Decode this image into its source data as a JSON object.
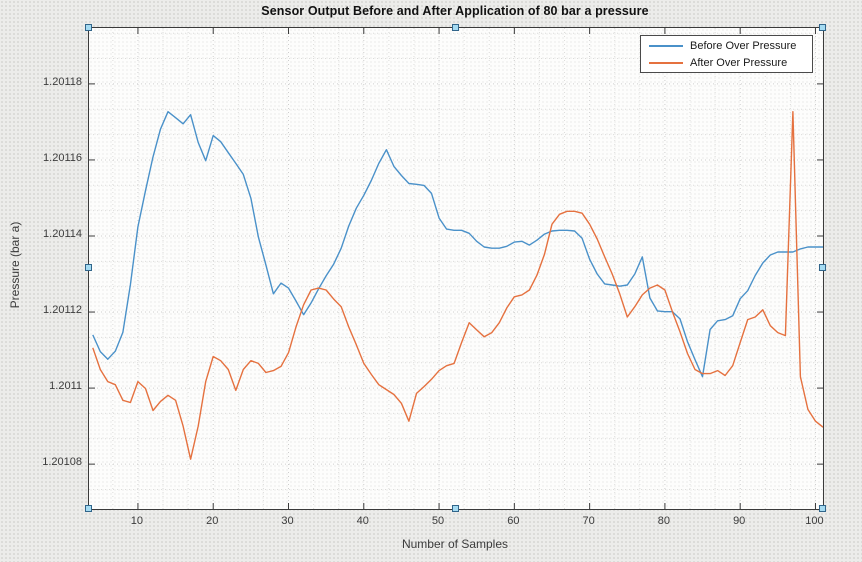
{
  "figure": {
    "type": "matlab-figure-plot",
    "background_color": "#ececea",
    "plot_background_color": "#fdfdfc",
    "axes_edit_mode_selected": true,
    "selection_handle_color": "#a5dbf2"
  },
  "chart_data": {
    "type": "line",
    "title": "Sensor Output Before and After Application of 80 bar a pressure",
    "xlabel": "Number of Samples",
    "ylabel": "Pressure (bar a)",
    "xlim": [
      3.5,
      101
    ],
    "ylim": [
      1.2010682,
      1.2011947
    ],
    "x_ticks": [
      10,
      20,
      30,
      40,
      50,
      60,
      70,
      80,
      90,
      100
    ],
    "x_tick_labels": [
      "10",
      "20",
      "30",
      "40",
      "50",
      "60",
      "70",
      "80",
      "90",
      "100"
    ],
    "y_ticks": [
      1.20108,
      1.2011,
      1.20112,
      1.20114,
      1.20116,
      1.20118
    ],
    "y_tick_labels": [
      "1.20108",
      "1.2011",
      "1.20112",
      "1.20114",
      "1.20116",
      "1.20118"
    ],
    "grid": {
      "major": true,
      "minor": true,
      "style": "dotted",
      "minor_divisions": 3,
      "color": "#d6d6d4"
    },
    "box": true,
    "legend": {
      "position": "northeast",
      "background": "#ffffff",
      "border": "#4a4a4a"
    },
    "x": [
      4,
      5,
      6,
      7,
      8,
      9,
      10,
      11,
      12,
      13,
      14,
      15,
      16,
      17,
      18,
      19,
      20,
      21,
      22,
      23,
      24,
      25,
      26,
      27,
      28,
      29,
      30,
      31,
      32,
      33,
      34,
      35,
      36,
      37,
      38,
      39,
      40,
      41,
      42,
      43,
      44,
      45,
      46,
      47,
      48,
      49,
      50,
      51,
      52,
      53,
      54,
      55,
      56,
      57,
      58,
      59,
      60,
      61,
      62,
      63,
      64,
      65,
      66,
      67,
      68,
      69,
      70,
      71,
      72,
      73,
      74,
      75,
      76,
      77,
      78,
      79,
      80,
      81,
      82,
      83,
      84,
      85,
      86,
      87,
      88,
      89,
      90,
      91,
      92,
      93,
      94,
      95,
      96,
      97,
      98,
      99,
      100,
      101
    ],
    "series": [
      {
        "name": "Before Over Pressure",
        "color": "#4a91c9",
        "values": [
          1.201114,
          1.2011096,
          1.2011076,
          1.2011097,
          1.2011147,
          1.2011272,
          1.2011424,
          1.2011519,
          1.2011608,
          1.2011681,
          1.2011727,
          1.2011711,
          1.2011695,
          1.2011719,
          1.2011646,
          1.2011598,
          1.2011664,
          1.2011648,
          1.2011619,
          1.2011591,
          1.2011562,
          1.2011499,
          1.2011397,
          1.2011324,
          1.2011248,
          1.2011276,
          1.2011263,
          1.2011229,
          1.2011193,
          1.2011224,
          1.2011261,
          1.2011295,
          1.2011326,
          1.2011368,
          1.2011426,
          1.2011473,
          1.2011507,
          1.2011546,
          1.2011591,
          1.2011627,
          1.2011583,
          1.2011559,
          1.2011538,
          1.2011536,
          1.2011533,
          1.2011512,
          1.2011447,
          1.2011418,
          1.2011415,
          1.2011415,
          1.2011407,
          1.2011386,
          1.2011371,
          1.2011368,
          1.2011368,
          1.2011373,
          1.2011384,
          1.2011386,
          1.2011376,
          1.2011389,
          1.2011405,
          1.2011413,
          1.2011415,
          1.2011415,
          1.2011413,
          1.2011394,
          1.2011339,
          1.20113,
          1.2011274,
          1.2011271,
          1.2011268,
          1.2011271,
          1.20113,
          1.2011345,
          1.2011237,
          1.2011203,
          1.2011201,
          1.2011201,
          1.2011182,
          1.2011122,
          1.2011075,
          1.201103,
          1.2011154,
          1.2011177,
          1.201118,
          1.201119,
          1.2011235,
          1.2011256,
          1.2011296,
          1.2011329,
          1.201135,
          1.2011358,
          1.2011358,
          1.2011358,
          1.2011366,
          1.2011371,
          1.2011371,
          1.2011371
        ]
      },
      {
        "name": "After Over Pressure",
        "color": "#e5713f",
        "values": [
          1.2011106,
          1.2011049,
          1.2011017,
          1.2011009,
          1.2010968,
          1.2010962,
          1.2011017,
          1.2010999,
          1.2010941,
          1.2010965,
          1.2010981,
          1.2010968,
          1.20109,
          1.2010813,
          1.20109,
          1.2011017,
          1.2011083,
          1.2011072,
          1.2011049,
          1.2010994,
          1.2011049,
          1.2011072,
          1.2011065,
          1.2011041,
          1.2011046,
          1.2011057,
          1.2011093,
          1.2011161,
          1.2011219,
          1.2011258,
          1.2011263,
          1.2011258,
          1.2011234,
          1.2011214,
          1.2011161,
          1.2011114,
          1.2011065,
          1.2011036,
          1.2011009,
          1.2010996,
          1.2010983,
          1.201096,
          1.2010913,
          1.2010986,
          1.2011004,
          1.2011023,
          1.2011046,
          1.2011059,
          1.2011065,
          1.201112,
          1.2011172,
          1.2011153,
          1.2011135,
          1.2011146,
          1.2011172,
          1.2011211,
          1.201124,
          1.2011245,
          1.2011258,
          1.2011297,
          1.2011352,
          1.2011431,
          1.2011457,
          1.2011465,
          1.2011465,
          1.201146,
          1.2011431,
          1.2011392,
          1.2011345,
          1.20113,
          1.2011248,
          1.2011187,
          1.2011214,
          1.2011245,
          1.2011263,
          1.2011271,
          1.2011258,
          1.2011201,
          1.2011148,
          1.2011091,
          1.2011049,
          1.2011038,
          1.2011038,
          1.2011046,
          1.2011033,
          1.2011059,
          1.201112,
          1.201118,
          1.2011187,
          1.2011206,
          1.2011164,
          1.2011146,
          1.2011138,
          1.2011727,
          1.201103,
          1.2010944,
          1.2010913,
          1.2010897
        ]
      }
    ]
  }
}
